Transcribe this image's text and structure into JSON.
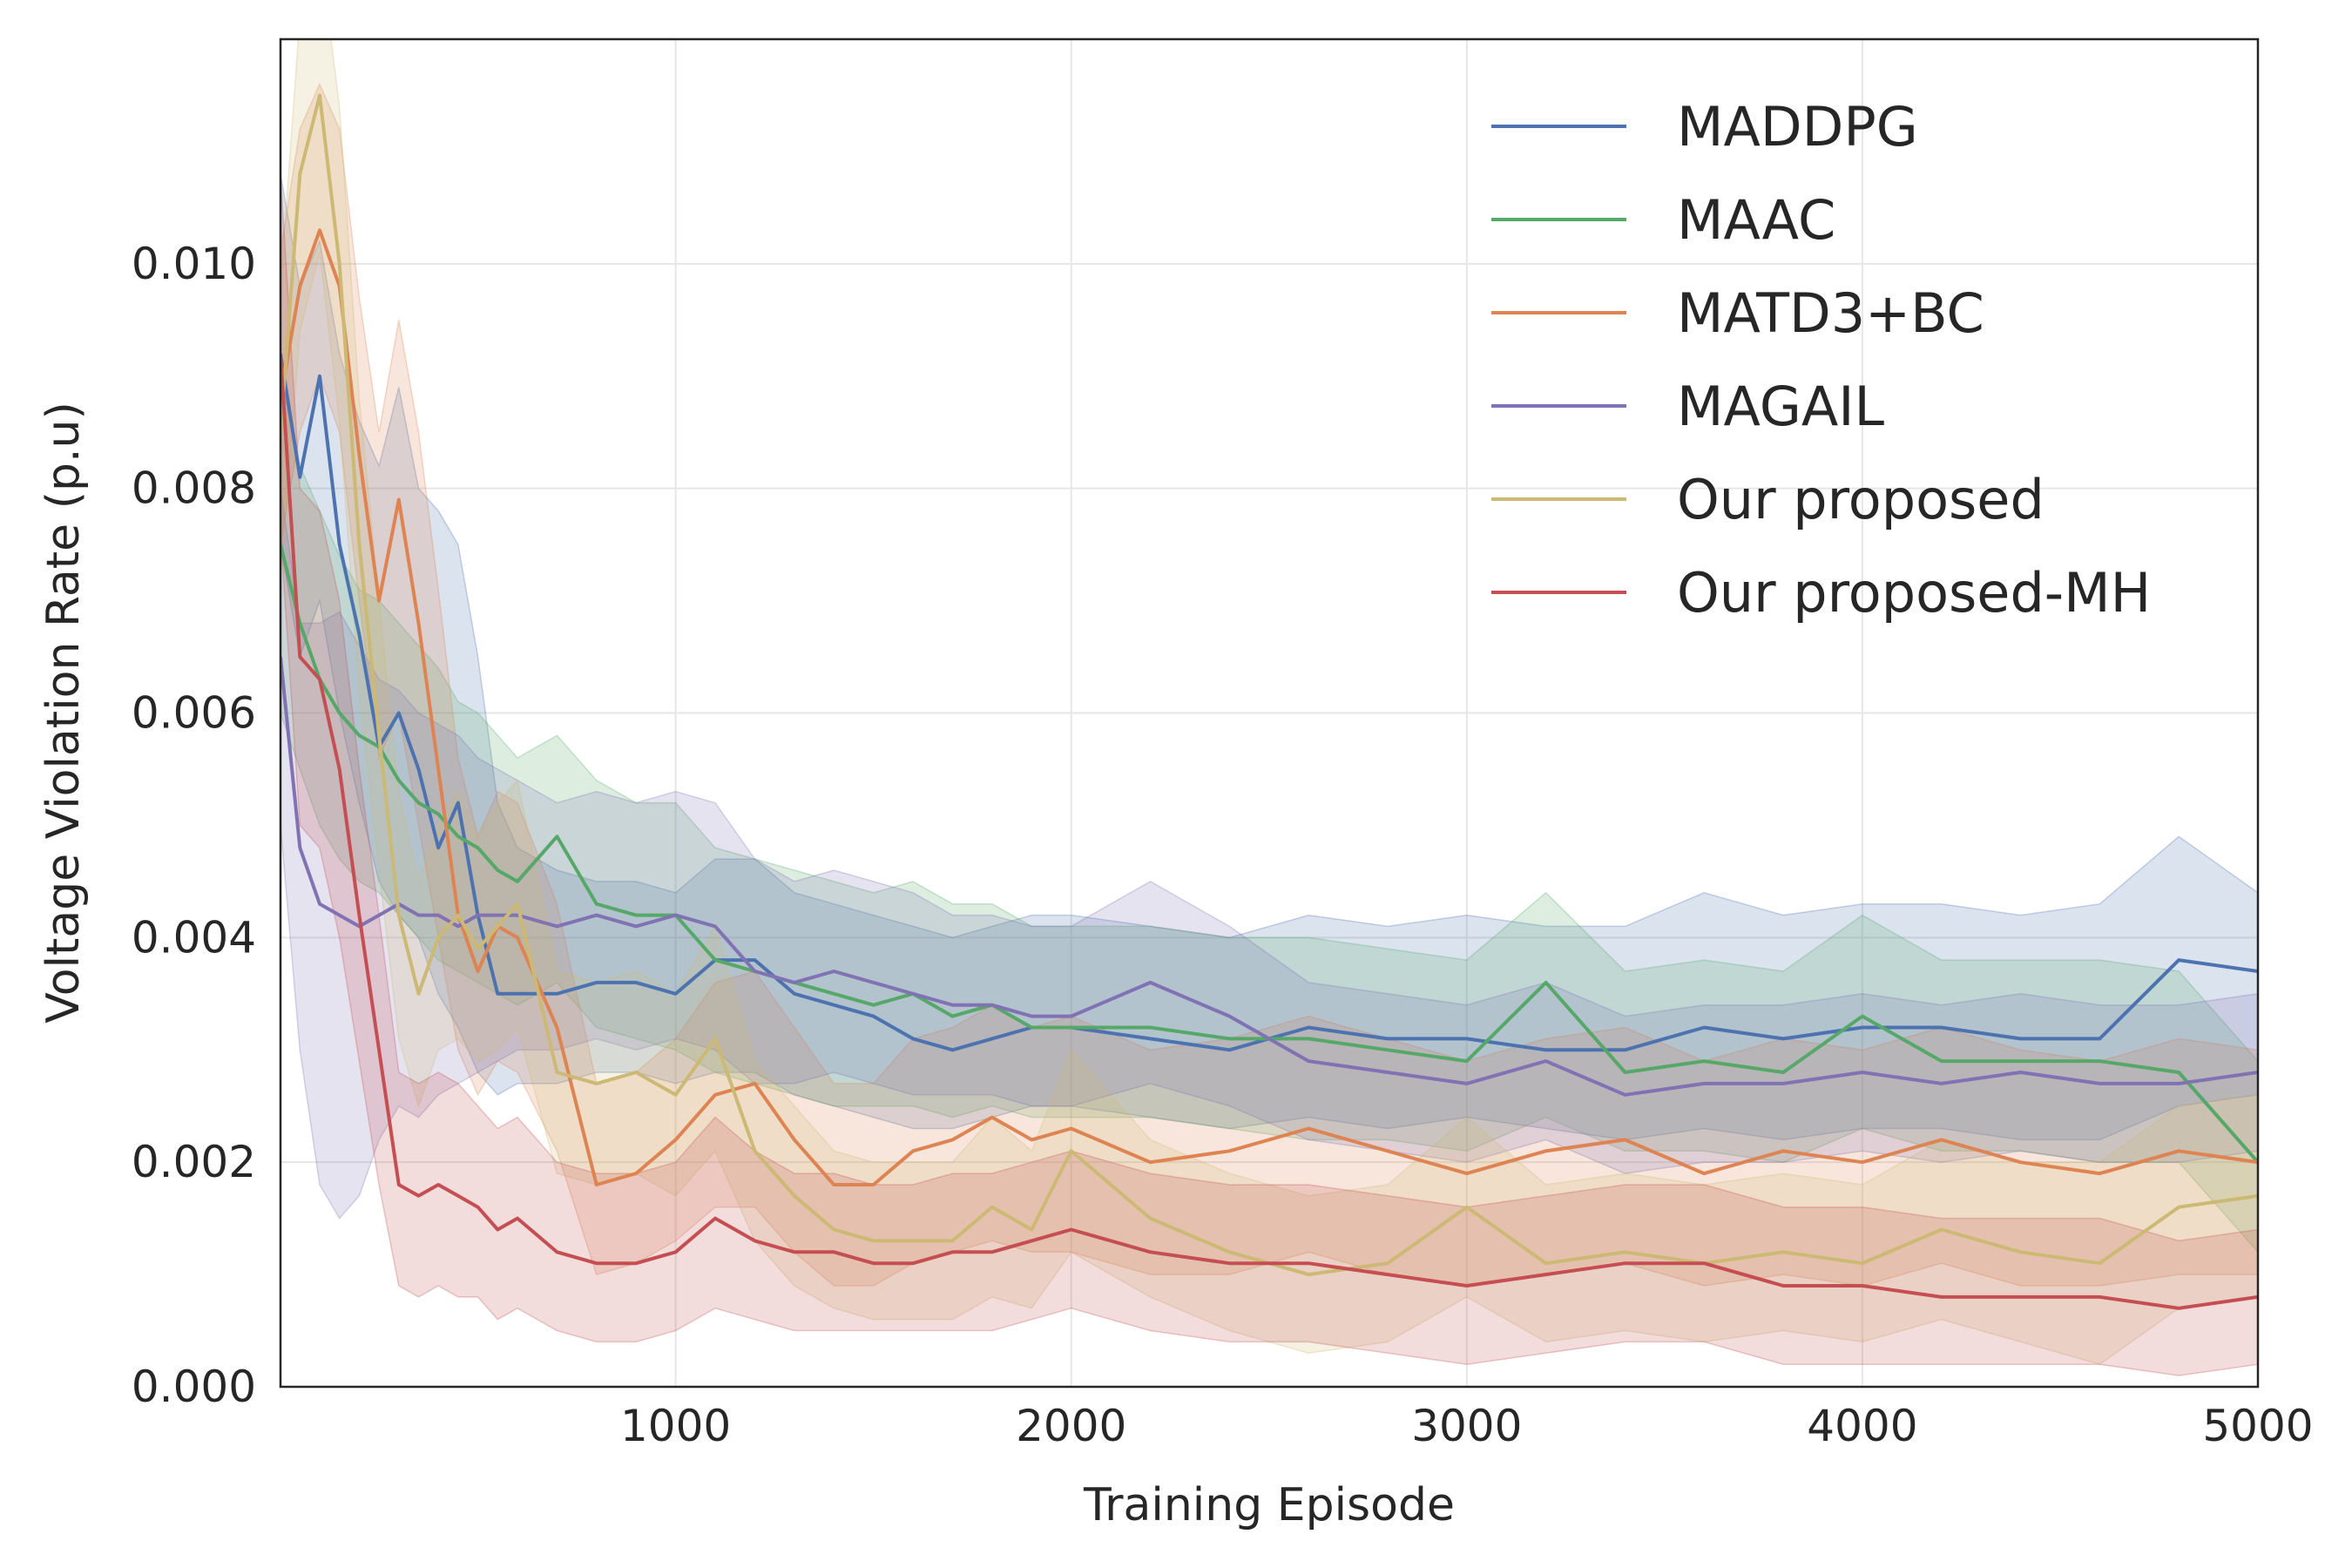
{
  "chart_data": {
    "type": "line",
    "title": "",
    "xlabel": "Training Episode",
    "ylabel": "Voltage Violation Rate (p.u)",
    "xlim": [
      1,
      5000
    ],
    "ylim": [
      0,
      0.012
    ],
    "xticks": [
      1000,
      2000,
      3000,
      4000,
      5000
    ],
    "xtick_labels": [
      "1000",
      "2000",
      "3000",
      "4000",
      "5000"
    ],
    "yticks": [
      0,
      0.002,
      0.004,
      0.006,
      0.008,
      0.01
    ],
    "ytick_labels": [
      "0.000",
      "0.002",
      "0.004",
      "0.006",
      "0.008",
      "0.010"
    ],
    "grid": true,
    "legend_position": "top-right",
    "x": [
      1,
      50,
      100,
      150,
      200,
      250,
      300,
      350,
      400,
      450,
      500,
      550,
      600,
      700,
      800,
      900,
      1000,
      1100,
      1200,
      1300,
      1400,
      1500,
      1600,
      1700,
      1800,
      1900,
      2000,
      2200,
      2400,
      2600,
      2800,
      3000,
      3200,
      3400,
      3600,
      3800,
      4000,
      4200,
      4400,
      4600,
      4800,
      5000
    ],
    "series": [
      {
        "name": "MADDPG",
        "color": "#4c72b0",
        "values": [
          0.0092,
          0.0081,
          0.009,
          0.0075,
          0.0067,
          0.0057,
          0.006,
          0.0055,
          0.0048,
          0.0052,
          0.0042,
          0.0035,
          0.0035,
          0.0035,
          0.0036,
          0.0036,
          0.0035,
          0.0038,
          0.0038,
          0.0035,
          0.0034,
          0.0033,
          0.0031,
          0.003,
          0.0031,
          0.0032,
          0.0032,
          0.0031,
          0.003,
          0.0032,
          0.0031,
          0.0031,
          0.003,
          0.003,
          0.0032,
          0.0031,
          0.0032,
          0.0032,
          0.0031,
          0.0031,
          0.0038,
          0.0037
        ],
        "lower": [
          0.0075,
          0.0065,
          0.007,
          0.006,
          0.0052,
          0.0045,
          0.0042,
          0.004,
          0.0035,
          0.0032,
          0.0028,
          0.0026,
          0.0027,
          0.0027,
          0.0028,
          0.0028,
          0.0027,
          0.0028,
          0.0028,
          0.0026,
          0.0025,
          0.0024,
          0.0023,
          0.0023,
          0.0024,
          0.0025,
          0.0025,
          0.0024,
          0.0023,
          0.0024,
          0.0023,
          0.0024,
          0.0023,
          0.0022,
          0.0023,
          0.0022,
          0.0023,
          0.0023,
          0.0022,
          0.0022,
          0.0025,
          0.0026
        ],
        "upper": [
          0.0108,
          0.0098,
          0.0102,
          0.0092,
          0.0086,
          0.0082,
          0.0089,
          0.008,
          0.0078,
          0.0075,
          0.0065,
          0.0052,
          0.0048,
          0.0046,
          0.0045,
          0.0045,
          0.0044,
          0.0047,
          0.0047,
          0.0044,
          0.0043,
          0.0042,
          0.0041,
          0.004,
          0.0041,
          0.0042,
          0.0042,
          0.0041,
          0.004,
          0.0042,
          0.0041,
          0.0042,
          0.0041,
          0.0041,
          0.0044,
          0.0042,
          0.0043,
          0.0043,
          0.0042,
          0.0043,
          0.0049,
          0.0044
        ]
      },
      {
        "name": "MAAC",
        "color": "#55a868",
        "values": [
          0.0075,
          0.0068,
          0.0063,
          0.006,
          0.0058,
          0.0057,
          0.0054,
          0.0052,
          0.0051,
          0.0049,
          0.0048,
          0.0046,
          0.0045,
          0.0049,
          0.0043,
          0.0042,
          0.0042,
          0.0038,
          0.0037,
          0.0036,
          0.0035,
          0.0034,
          0.0035,
          0.0033,
          0.0034,
          0.0032,
          0.0032,
          0.0032,
          0.0031,
          0.0031,
          0.003,
          0.0029,
          0.0036,
          0.0028,
          0.0029,
          0.0028,
          0.0033,
          0.0029,
          0.0029,
          0.0029,
          0.0028,
          0.002
        ],
        "lower": [
          0.006,
          0.0055,
          0.005,
          0.0047,
          0.0045,
          0.0044,
          0.0042,
          0.004,
          0.0038,
          0.0037,
          0.0036,
          0.0035,
          0.0034,
          0.0036,
          0.0032,
          0.0031,
          0.003,
          0.0028,
          0.0027,
          0.0026,
          0.0025,
          0.0025,
          0.0025,
          0.0024,
          0.0025,
          0.0024,
          0.0024,
          0.0024,
          0.0023,
          0.0022,
          0.0022,
          0.0021,
          0.0024,
          0.0021,
          0.0021,
          0.002,
          0.0023,
          0.0021,
          0.0021,
          0.002,
          0.002,
          0.0012
        ],
        "upper": [
          0.009,
          0.0082,
          0.0078,
          0.0074,
          0.0071,
          0.007,
          0.0068,
          0.0066,
          0.0064,
          0.0061,
          0.006,
          0.0058,
          0.0056,
          0.0058,
          0.0054,
          0.0052,
          0.0052,
          0.0048,
          0.0047,
          0.0046,
          0.0045,
          0.0044,
          0.0045,
          0.0043,
          0.0043,
          0.0041,
          0.0041,
          0.0041,
          0.004,
          0.004,
          0.0039,
          0.0038,
          0.0044,
          0.0037,
          0.0038,
          0.0037,
          0.0042,
          0.0038,
          0.0038,
          0.0038,
          0.0037,
          0.0029
        ]
      },
      {
        "name": "MATD3+BC",
        "color": "#dd8452",
        "values": [
          0.0088,
          0.0098,
          0.0103,
          0.0098,
          0.0083,
          0.007,
          0.0079,
          0.0068,
          0.0055,
          0.0042,
          0.0037,
          0.0041,
          0.004,
          0.0032,
          0.0018,
          0.0019,
          0.0022,
          0.0026,
          0.0027,
          0.0022,
          0.0018,
          0.0018,
          0.0021,
          0.0022,
          0.0024,
          0.0022,
          0.0023,
          0.002,
          0.0021,
          0.0023,
          0.0021,
          0.0019,
          0.0021,
          0.0022,
          0.0019,
          0.0021,
          0.002,
          0.0022,
          0.002,
          0.0019,
          0.0021,
          0.002
        ],
        "lower": [
          0.0075,
          0.0085,
          0.009,
          0.0085,
          0.007,
          0.0056,
          0.006,
          0.005,
          0.004,
          0.003,
          0.0026,
          0.0029,
          0.0028,
          0.0021,
          0.001,
          0.0011,
          0.0013,
          0.0016,
          0.0016,
          0.0012,
          0.0009,
          0.0009,
          0.0011,
          0.0012,
          0.0013,
          0.0012,
          0.0012,
          0.001,
          0.001,
          0.0012,
          0.001,
          0.0009,
          0.001,
          0.0011,
          0.0009,
          0.001,
          0.0009,
          0.0011,
          0.0009,
          0.0009,
          0.001,
          0.001
        ],
        "upper": [
          0.0101,
          0.0112,
          0.0116,
          0.0112,
          0.0097,
          0.0085,
          0.0095,
          0.0085,
          0.0071,
          0.0056,
          0.0049,
          0.0053,
          0.0052,
          0.0043,
          0.0027,
          0.0028,
          0.0031,
          0.0036,
          0.0037,
          0.0032,
          0.0027,
          0.0027,
          0.0031,
          0.0032,
          0.0034,
          0.0032,
          0.0033,
          0.003,
          0.0031,
          0.0033,
          0.0031,
          0.0029,
          0.0031,
          0.0032,
          0.0029,
          0.0031,
          0.003,
          0.0032,
          0.003,
          0.0029,
          0.0031,
          0.003
        ]
      },
      {
        "name": "MAGAIL",
        "color": "#8172b3",
        "values": [
          0.0065,
          0.0048,
          0.0043,
          0.0042,
          0.0041,
          0.0042,
          0.0043,
          0.0042,
          0.0042,
          0.0041,
          0.0042,
          0.0042,
          0.0042,
          0.0041,
          0.0042,
          0.0041,
          0.0042,
          0.0041,
          0.0037,
          0.0036,
          0.0037,
          0.0036,
          0.0035,
          0.0034,
          0.0034,
          0.0033,
          0.0033,
          0.0036,
          0.0033,
          0.0029,
          0.0028,
          0.0027,
          0.0029,
          0.0026,
          0.0027,
          0.0027,
          0.0028,
          0.0027,
          0.0028,
          0.0027,
          0.0027,
          0.0028
        ],
        "lower": [
          0.005,
          0.003,
          0.0018,
          0.0015,
          0.0017,
          0.0022,
          0.0025,
          0.0024,
          0.0026,
          0.0027,
          0.0028,
          0.0029,
          0.003,
          0.003,
          0.0031,
          0.003,
          0.0031,
          0.003,
          0.0027,
          0.0027,
          0.0028,
          0.0027,
          0.0026,
          0.0026,
          0.0026,
          0.0025,
          0.0025,
          0.0027,
          0.0025,
          0.0022,
          0.0021,
          0.002,
          0.0022,
          0.0019,
          0.002,
          0.002,
          0.0021,
          0.002,
          0.0021,
          0.002,
          0.002,
          0.0021
        ],
        "upper": [
          0.008,
          0.0068,
          0.0068,
          0.0069,
          0.0066,
          0.0063,
          0.0062,
          0.006,
          0.0059,
          0.0058,
          0.0056,
          0.0055,
          0.0054,
          0.0052,
          0.0053,
          0.0052,
          0.0053,
          0.0052,
          0.0047,
          0.0045,
          0.0046,
          0.0045,
          0.0044,
          0.0042,
          0.0042,
          0.0041,
          0.0041,
          0.0045,
          0.0041,
          0.0036,
          0.0035,
          0.0034,
          0.0036,
          0.0033,
          0.0034,
          0.0034,
          0.0035,
          0.0034,
          0.0035,
          0.0034,
          0.0034,
          0.0035
        ]
      },
      {
        "name": "Our proposed",
        "color": "#ccb974",
        "values": [
          0.0085,
          0.0108,
          0.0115,
          0.01,
          0.0075,
          0.0058,
          0.0042,
          0.0035,
          0.004,
          0.0042,
          0.0039,
          0.0041,
          0.0043,
          0.0028,
          0.0027,
          0.0028,
          0.0026,
          0.0031,
          0.0021,
          0.0017,
          0.0014,
          0.0013,
          0.0013,
          0.0013,
          0.0016,
          0.0014,
          0.0021,
          0.0015,
          0.0012,
          0.001,
          0.0011,
          0.0016,
          0.0011,
          0.0012,
          0.0011,
          0.0012,
          0.0011,
          0.0014,
          0.0012,
          0.0011,
          0.0016,
          0.0017
        ],
        "lower": [
          0.0072,
          0.0094,
          0.0101,
          0.0086,
          0.0062,
          0.0046,
          0.0031,
          0.0025,
          0.003,
          0.0031,
          0.0029,
          0.003,
          0.0032,
          0.0019,
          0.0018,
          0.0019,
          0.0017,
          0.0021,
          0.0013,
          0.0009,
          0.0007,
          0.0006,
          0.0006,
          0.0006,
          0.0008,
          0.0007,
          0.0012,
          0.0008,
          0.0005,
          0.0003,
          0.0004,
          0.0008,
          0.0004,
          0.0005,
          0.0004,
          0.0005,
          0.0004,
          0.0006,
          0.0004,
          0.0002,
          0.0007,
          0.0008
        ],
        "upper": [
          0.0098,
          0.0122,
          0.0128,
          0.0114,
          0.0088,
          0.007,
          0.0053,
          0.0045,
          0.005,
          0.0053,
          0.0049,
          0.0052,
          0.0054,
          0.0037,
          0.0036,
          0.0037,
          0.0035,
          0.0041,
          0.0029,
          0.0025,
          0.0021,
          0.002,
          0.002,
          0.002,
          0.0024,
          0.0021,
          0.003,
          0.0022,
          0.0019,
          0.0017,
          0.0018,
          0.0024,
          0.0018,
          0.0019,
          0.0018,
          0.0019,
          0.0018,
          0.0022,
          0.002,
          0.002,
          0.0025,
          0.0026
        ]
      },
      {
        "name": "Our proposed-MH",
        "color": "#c44e52",
        "values": [
          0.0092,
          0.0065,
          0.0063,
          0.0055,
          0.0042,
          0.003,
          0.0018,
          0.0017,
          0.0018,
          0.0017,
          0.0016,
          0.0014,
          0.0015,
          0.0012,
          0.0011,
          0.0011,
          0.0012,
          0.0015,
          0.0013,
          0.0012,
          0.0012,
          0.0011,
          0.0011,
          0.0012,
          0.0012,
          0.0013,
          0.0014,
          0.0012,
          0.0011,
          0.0011,
          0.001,
          0.0009,
          0.001,
          0.0011,
          0.0011,
          0.0009,
          0.0009,
          0.0008,
          0.0008,
          0.0008,
          0.0007,
          0.0008
        ],
        "lower": [
          0.0076,
          0.005,
          0.0048,
          0.004,
          0.0029,
          0.0018,
          0.0009,
          0.0008,
          0.0009,
          0.0008,
          0.0008,
          0.0006,
          0.0007,
          0.0005,
          0.0004,
          0.0004,
          0.0005,
          0.0007,
          0.0006,
          0.0005,
          0.0005,
          0.0005,
          0.0005,
          0.0005,
          0.0005,
          0.0006,
          0.0007,
          0.0005,
          0.0004,
          0.0004,
          0.0003,
          0.0002,
          0.0003,
          0.0004,
          0.0004,
          0.0002,
          0.0002,
          0.0002,
          0.0002,
          0.0002,
          0.0001,
          0.0002
        ],
        "upper": [
          0.0108,
          0.008,
          0.0078,
          0.007,
          0.0055,
          0.0042,
          0.0028,
          0.0027,
          0.0028,
          0.0027,
          0.0025,
          0.0023,
          0.0024,
          0.002,
          0.0019,
          0.0019,
          0.002,
          0.0024,
          0.0021,
          0.0019,
          0.0019,
          0.0018,
          0.0018,
          0.0019,
          0.0019,
          0.002,
          0.0021,
          0.0019,
          0.0018,
          0.0018,
          0.0017,
          0.0016,
          0.0017,
          0.0018,
          0.0018,
          0.0016,
          0.0016,
          0.0015,
          0.0015,
          0.0015,
          0.0013,
          0.0014
        ]
      }
    ]
  }
}
